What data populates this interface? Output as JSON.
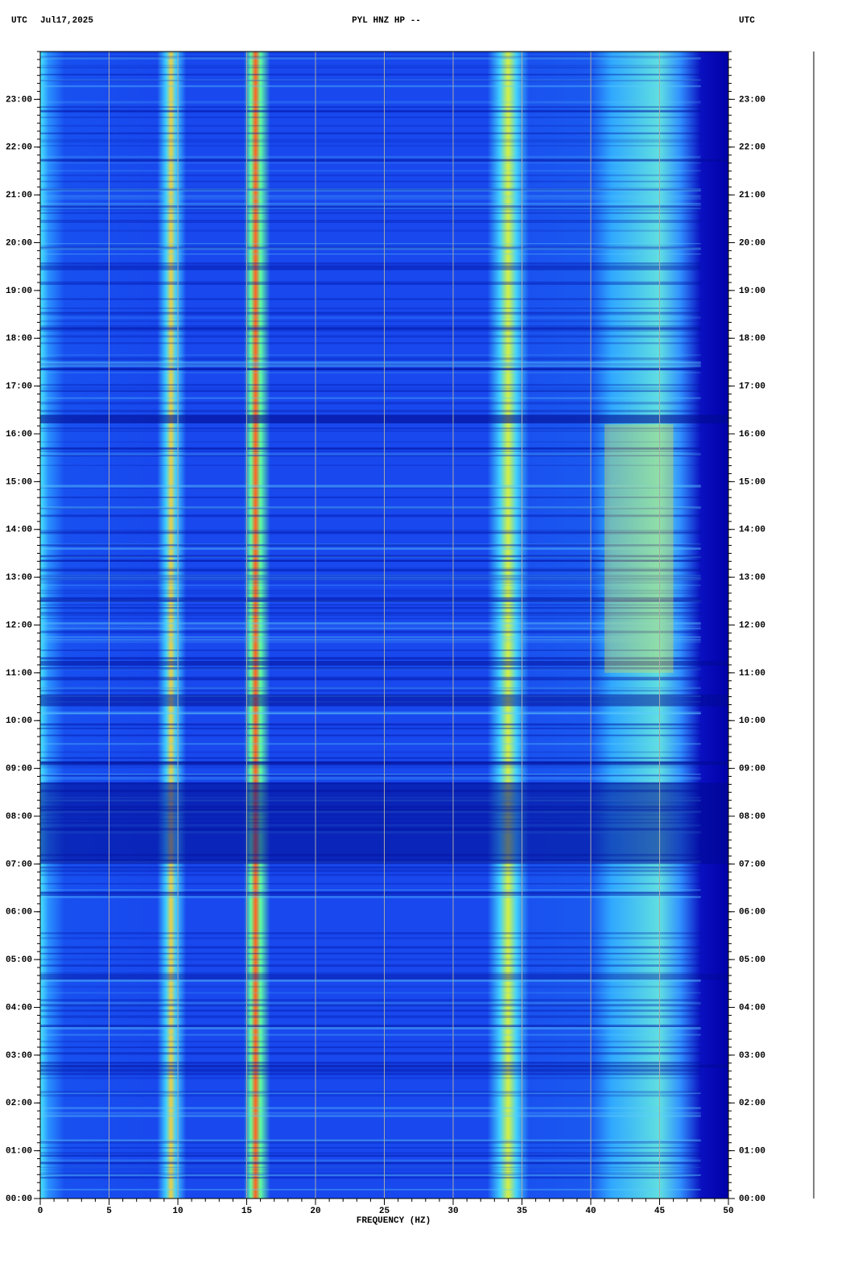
{
  "chart_data": {
    "type": "spectrogram",
    "title": "PYL HNZ HP --",
    "date": "Jul17,2025",
    "left_zone": "UTC",
    "right_zone": "UTC",
    "xlabel": "FREQUENCY (HZ)",
    "xlim": [
      0,
      50
    ],
    "xticks": [
      0,
      5,
      10,
      15,
      20,
      25,
      30,
      35,
      40,
      45,
      50
    ],
    "ylim": [
      0,
      24
    ],
    "yticks": [
      {
        "value": 0,
        "label": "00:00"
      },
      {
        "value": 1,
        "label": "01:00"
      },
      {
        "value": 2,
        "label": "02:00"
      },
      {
        "value": 3,
        "label": "03:00"
      },
      {
        "value": 4,
        "label": "04:00"
      },
      {
        "value": 5,
        "label": "05:00"
      },
      {
        "value": 6,
        "label": "06:00"
      },
      {
        "value": 7,
        "label": "07:00"
      },
      {
        "value": 8,
        "label": "08:00"
      },
      {
        "value": 9,
        "label": "09:00"
      },
      {
        "value": 10,
        "label": "10:00"
      },
      {
        "value": 11,
        "label": "11:00"
      },
      {
        "value": 12,
        "label": "12:00"
      },
      {
        "value": 13,
        "label": "13:00"
      },
      {
        "value": 14,
        "label": "14:00"
      },
      {
        "value": 15,
        "label": "15:00"
      },
      {
        "value": 16,
        "label": "16:00"
      },
      {
        "value": 17,
        "label": "17:00"
      },
      {
        "value": 18,
        "label": "18:00"
      },
      {
        "value": 19,
        "label": "19:00"
      },
      {
        "value": 20,
        "label": "20:00"
      },
      {
        "value": 21,
        "label": "21:00"
      },
      {
        "value": 22,
        "label": "22:00"
      },
      {
        "value": 23,
        "label": "23:00"
      }
    ],
    "grid": true
  }
}
